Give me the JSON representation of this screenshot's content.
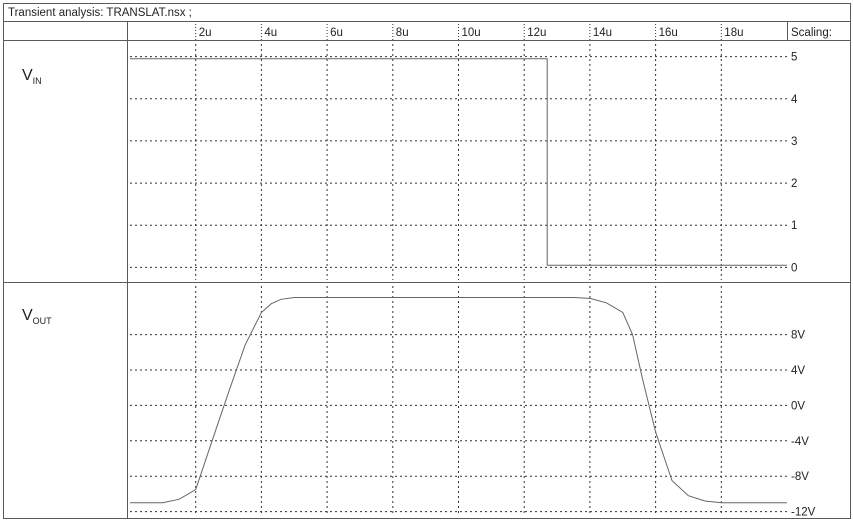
{
  "title": "Transient analysis: TRANSLAT.nsx ;",
  "scaling_label": "Scaling:",
  "time_ticks": [
    "2u",
    "4u",
    "6u",
    "8u",
    "10u",
    "12u",
    "14u",
    "16u",
    "18u"
  ],
  "colors": {
    "frame": "#5a5a5a",
    "grid": "#333333",
    "trace": "#666666",
    "text": "#222222"
  },
  "chart_data": [
    {
      "type": "line",
      "label_main": "V",
      "label_sub": "IN",
      "xlabel": "",
      "ylabel": "",
      "xlim": [
        0,
        20
      ],
      "ylim": [
        -0.3,
        5.3
      ],
      "grid": true,
      "yticks": [
        0,
        1,
        2,
        3,
        4,
        5
      ],
      "ytick_labels": [
        "0",
        "1",
        "2",
        "3",
        "4",
        "5"
      ],
      "series": [
        {
          "x": [
            0,
            12.7,
            12.7,
            20
          ],
          "y": [
            4.95,
            4.95,
            0.05,
            0.05
          ]
        }
      ]
    },
    {
      "type": "line",
      "label_main": "V",
      "label_sub": "OUT",
      "xlabel": "",
      "ylabel": "",
      "xlim": [
        0,
        20
      ],
      "ylim": [
        -12.5,
        13.5
      ],
      "grid": true,
      "yticks": [
        -12,
        -8,
        -4,
        0,
        4,
        8
      ],
      "ytick_labels": [
        "-12V",
        "-8V",
        "-4V",
        "0V",
        "4V",
        "8V"
      ],
      "series": [
        {
          "x": [
            0,
            1,
            1.5,
            2,
            2.5,
            3,
            3.5,
            4,
            4.3,
            4.6,
            5,
            6,
            8,
            10,
            12,
            13.5,
            14,
            14.5,
            15,
            15.3,
            15.6,
            16,
            16.5,
            17,
            17.5,
            18,
            20
          ],
          "y": [
            -11,
            -11,
            -10.6,
            -9.5,
            -4,
            1.5,
            6.8,
            10.5,
            11.5,
            12,
            12.2,
            12.2,
            12.2,
            12.2,
            12.2,
            12.2,
            12.1,
            11.6,
            10.5,
            8,
            3,
            -3,
            -8.5,
            -10.2,
            -10.8,
            -11,
            -11
          ]
        }
      ]
    }
  ]
}
